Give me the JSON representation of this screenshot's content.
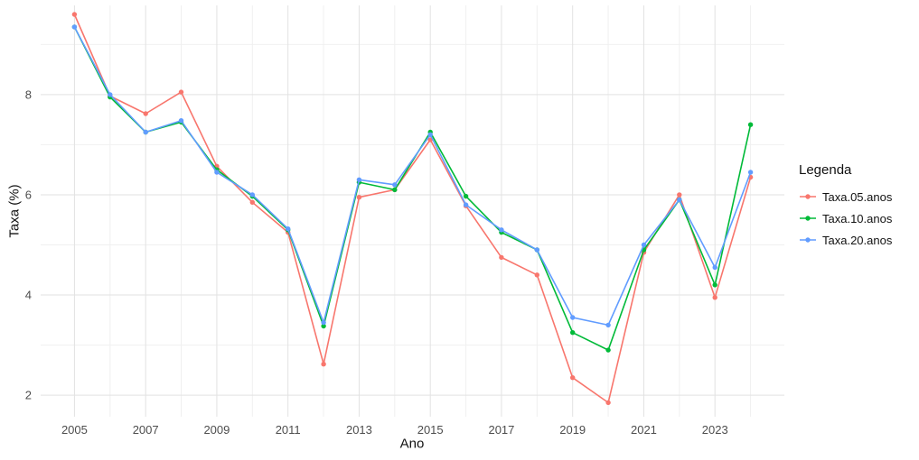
{
  "chart_data": {
    "type": "line",
    "title": "",
    "xlabel": "Ano",
    "ylabel": "Taxa (%)",
    "legend_title": "Legenda",
    "legend_position": "right",
    "grid": true,
    "background": "#ffffff",
    "grid_major_color": "#e2e2e2",
    "grid_minor_color": "#f0f0f0",
    "x": [
      2005,
      2006,
      2007,
      2008,
      2009,
      2010,
      2011,
      2012,
      2013,
      2014,
      2015,
      2016,
      2017,
      2018,
      2019,
      2020,
      2021,
      2022,
      2023,
      2024
    ],
    "x_ticks": [
      2005,
      2007,
      2009,
      2011,
      2013,
      2015,
      2017,
      2019,
      2021,
      2023
    ],
    "x_minor": [
      2006,
      2008,
      2010,
      2012,
      2014,
      2016,
      2018,
      2020,
      2022,
      2024
    ],
    "y_ticks": [
      2,
      4,
      6,
      8
    ],
    "y_minor": [
      3,
      5,
      7,
      9
    ],
    "xlim": [
      2004.05,
      2024.95
    ],
    "ylim": [
      1.57,
      9.78
    ],
    "series": [
      {
        "name": "Taxa.05.anos",
        "color": "#F8766D",
        "values": [
          9.6,
          7.97,
          7.62,
          8.05,
          6.57,
          5.85,
          5.25,
          2.62,
          5.95,
          6.1,
          7.1,
          5.78,
          4.75,
          4.4,
          2.35,
          1.85,
          4.85,
          6.0,
          3.95,
          6.35
        ]
      },
      {
        "name": "Taxa.10.anos",
        "color": "#00BA38",
        "values": [
          9.35,
          7.95,
          7.25,
          7.45,
          6.5,
          5.97,
          5.3,
          3.38,
          6.25,
          6.1,
          7.25,
          5.97,
          5.25,
          4.9,
          3.25,
          2.9,
          4.9,
          5.9,
          4.2,
          7.4
        ]
      },
      {
        "name": "Taxa.20.anos",
        "color": "#619CFF",
        "values": [
          9.35,
          8.0,
          7.25,
          7.48,
          6.45,
          6.0,
          5.32,
          3.45,
          6.3,
          6.2,
          7.2,
          5.8,
          5.3,
          4.9,
          3.55,
          3.4,
          5.0,
          5.9,
          4.55,
          6.45
        ]
      }
    ]
  }
}
